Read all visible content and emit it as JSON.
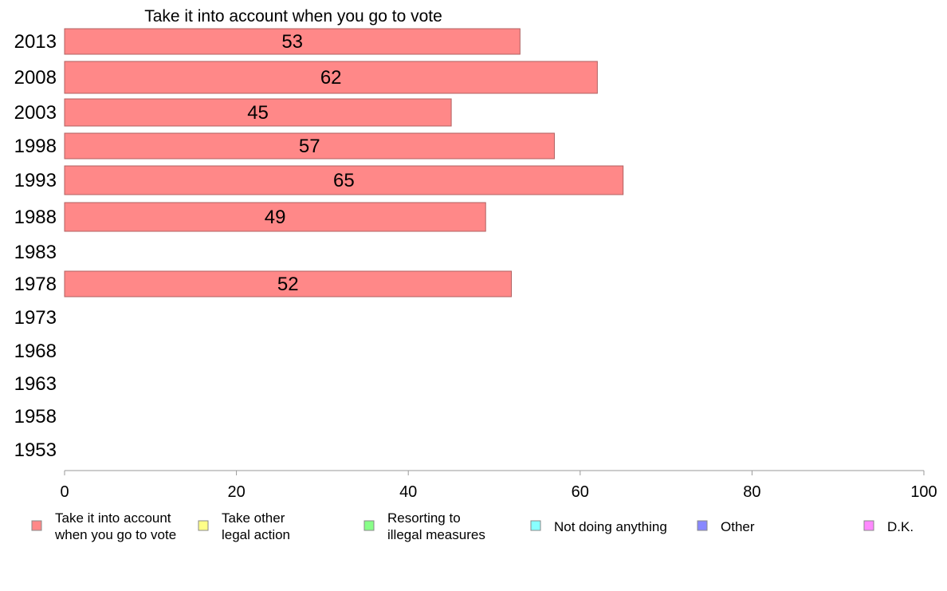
{
  "chart_data": {
    "type": "bar",
    "orientation": "horizontal",
    "title": "Take it into account when you go to vote",
    "categories": [
      "2013",
      "2008",
      "2003",
      "1998",
      "1993",
      "1988",
      "1983",
      "1978",
      "1973",
      "1968",
      "1963",
      "1958",
      "1953"
    ],
    "series": [
      {
        "name": "Take it into account when you go to vote",
        "values": [
          53,
          62,
          45,
          57,
          65,
          49,
          null,
          52,
          null,
          null,
          null,
          null,
          null
        ],
        "color": "#ff8888"
      }
    ],
    "data_labels": [
      "53",
      "62",
      "45",
      "57",
      "65",
      "49",
      "",
      "52",
      "",
      "",
      "",
      "",
      ""
    ],
    "xlim": [
      0,
      100
    ],
    "x_ticks": [
      0,
      20,
      40,
      60,
      80,
      100
    ],
    "x_tick_labels": [
      "0",
      "20",
      "40",
      "60",
      "80",
      "100"
    ],
    "grid": false,
    "legend_position": "bottom",
    "legend": [
      {
        "lines": [
          "Take it into account",
          "when you go to vote"
        ],
        "color": "#ff8888"
      },
      {
        "lines": [
          "Take other",
          "legal action"
        ],
        "color": "#ffff88"
      },
      {
        "lines": [
          "Resorting to",
          "illegal measures"
        ],
        "color": "#88ff88"
      },
      {
        "lines": [
          "Not doing anything"
        ],
        "color": "#88ffff"
      },
      {
        "lines": [
          "Other"
        ],
        "color": "#8888ff"
      },
      {
        "lines": [
          "D.K."
        ],
        "color": "#ff88ff"
      }
    ],
    "bar_stroke_color": "#b06060",
    "axis_color": "#999999"
  }
}
